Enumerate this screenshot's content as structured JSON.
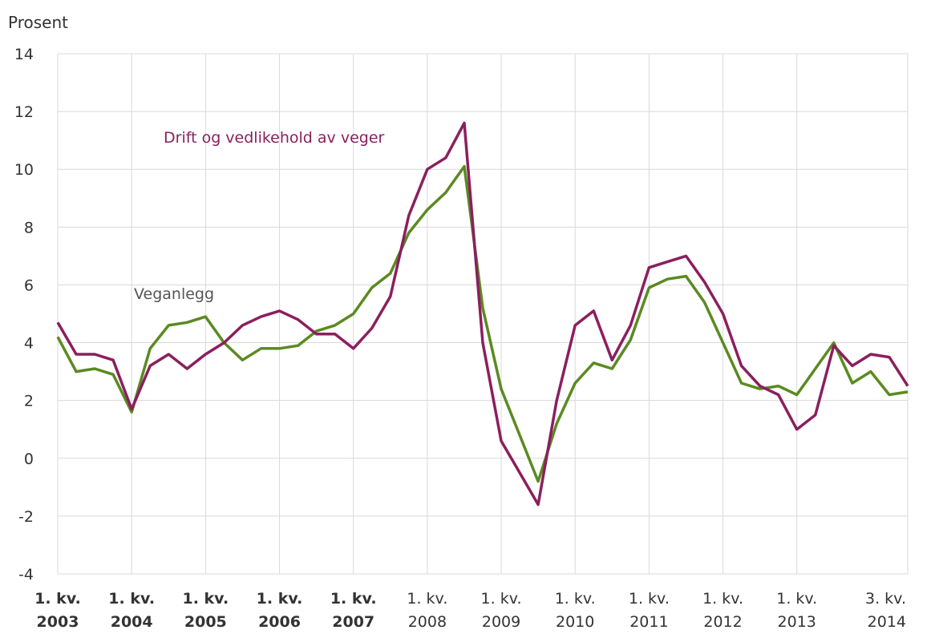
{
  "chart_data": {
    "type": "line",
    "ylabel": "Prosent",
    "ylim": [
      -4,
      14
    ],
    "yticks": [
      -4,
      -2,
      0,
      2,
      4,
      6,
      8,
      10,
      12,
      14
    ],
    "grid": true,
    "xtick_labels": [
      {
        "line1": "1. kv.",
        "line2": "2003",
        "bold": true
      },
      {
        "line1": "1. kv.",
        "line2": "2004",
        "bold": true
      },
      {
        "line1": "1. kv.",
        "line2": "2005",
        "bold": true
      },
      {
        "line1": "1. kv.",
        "line2": "2006",
        "bold": true
      },
      {
        "line1": "1. kv.",
        "line2": "2007",
        "bold": true
      },
      {
        "line1": "1. kv.",
        "line2": "2008",
        "bold": false
      },
      {
        "line1": "1. kv.",
        "line2": "2009",
        "bold": false
      },
      {
        "line1": "1. kv.",
        "line2": "2010",
        "bold": false
      },
      {
        "line1": "1. kv.",
        "line2": "2011",
        "bold": false
      },
      {
        "line1": "1. kv.",
        "line2": "2012",
        "bold": false
      },
      {
        "line1": "1. kv.",
        "line2": "2013",
        "bold": false
      },
      {
        "line1": "3. kv.",
        "line2": "2014",
        "bold": false
      }
    ],
    "series": [
      {
        "name": "Drift og vedlikehold av veger",
        "color": "#8b1f5e",
        "values": [
          4.7,
          3.6,
          3.6,
          3.4,
          1.7,
          3.2,
          3.6,
          3.1,
          3.6,
          4.0,
          4.6,
          4.9,
          5.1,
          4.8,
          4.3,
          4.3,
          3.8,
          4.5,
          5.6,
          8.4,
          10.0,
          10.4,
          11.6,
          4.0,
          0.6,
          -0.5,
          -1.6,
          2.0,
          4.6,
          5.1,
          3.4,
          4.6,
          6.6,
          6.8,
          7.0,
          6.1,
          5.0,
          3.2,
          2.5,
          2.2,
          1.0,
          1.5,
          3.9,
          3.2,
          3.6,
          3.5,
          2.5
        ]
      },
      {
        "name": "Veganlegg",
        "color": "#5b8a21",
        "values": [
          4.2,
          3.0,
          3.1,
          2.9,
          1.6,
          3.8,
          4.6,
          4.7,
          4.9,
          4.0,
          3.4,
          3.8,
          3.8,
          3.9,
          4.4,
          4.6,
          5.0,
          5.9,
          6.4,
          7.8,
          8.6,
          9.2,
          10.1,
          5.2,
          2.4,
          0.8,
          -0.8,
          1.2,
          2.6,
          3.3,
          3.1,
          4.1,
          5.9,
          6.2,
          6.3,
          5.4,
          4.0,
          2.6,
          2.4,
          2.5,
          2.2,
          3.1,
          4.0,
          2.6,
          3.0,
          2.2,
          2.3
        ]
      }
    ]
  }
}
